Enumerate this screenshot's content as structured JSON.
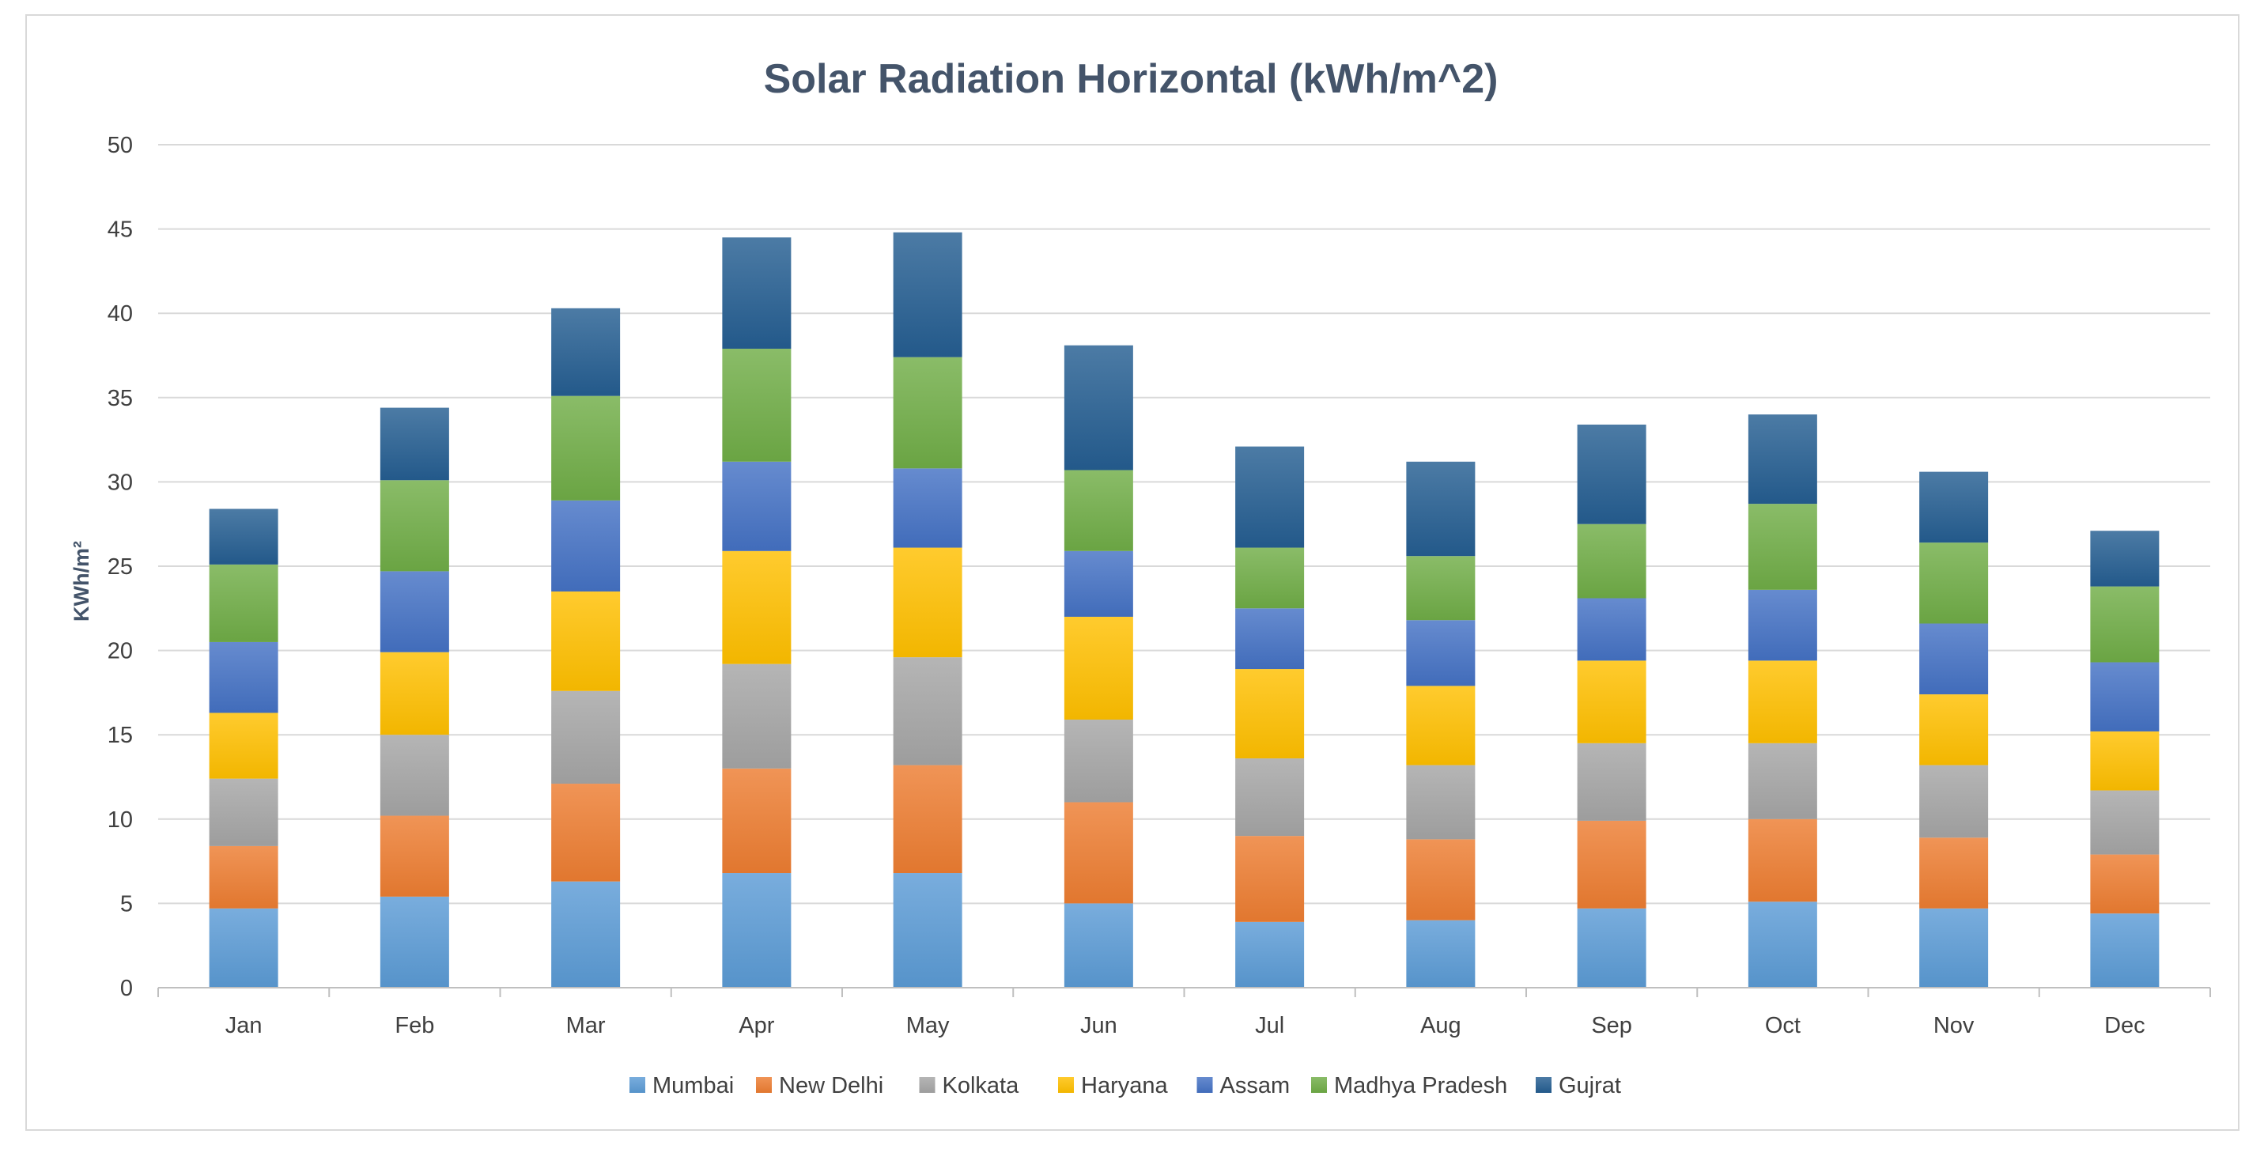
{
  "chart_data": {
    "type": "bar",
    "stacked": true,
    "title": "Solar Radiation Horizontal (kWh/m^2)",
    "xlabel": "",
    "ylabel": "KWh/m²",
    "ylim": [
      0,
      50
    ],
    "yticks": [
      0,
      5,
      10,
      15,
      20,
      25,
      30,
      35,
      40,
      45,
      50
    ],
    "grid": true,
    "legend_position": "bottom",
    "categories": [
      "Jan",
      "Feb",
      "Mar",
      "Apr",
      "May",
      "Jun",
      "Jul",
      "Aug",
      "Sep",
      "Oct",
      "Nov",
      "Dec"
    ],
    "series": [
      {
        "name": "Mumbai",
        "color": "#5b9bd5",
        "values": [
          4.7,
          5.4,
          6.3,
          6.8,
          6.8,
          5.0,
          3.9,
          4.0,
          4.7,
          5.1,
          4.7,
          4.4
        ]
      },
      {
        "name": "New Delhi",
        "color": "#ed7d31",
        "values": [
          3.7,
          4.8,
          5.8,
          6.2,
          6.4,
          6.0,
          5.1,
          4.8,
          5.2,
          4.9,
          4.2,
          3.5
        ]
      },
      {
        "name": "Kolkata",
        "color": "#a5a5a5",
        "values": [
          4.0,
          4.8,
          5.5,
          6.2,
          6.4,
          4.9,
          4.6,
          4.4,
          4.6,
          4.5,
          4.3,
          3.8
        ]
      },
      {
        "name": "Haryana",
        "color": "#ffc000",
        "values": [
          3.9,
          4.9,
          5.9,
          6.7,
          6.5,
          6.1,
          5.3,
          4.7,
          4.9,
          4.9,
          4.2,
          3.5
        ]
      },
      {
        "name": "Assam",
        "color": "#4472c4",
        "values": [
          4.2,
          4.8,
          5.4,
          5.3,
          4.7,
          3.9,
          3.6,
          3.9,
          3.7,
          4.2,
          4.2,
          4.1
        ]
      },
      {
        "name": "Madhya Pradesh",
        "color": "#70ad47",
        "values": [
          4.6,
          5.4,
          6.2,
          6.7,
          6.6,
          4.8,
          3.6,
          3.8,
          4.4,
          5.1,
          4.8,
          4.5
        ]
      },
      {
        "name": "Gujrat",
        "color": "#255e91",
        "values": [
          3.3,
          4.3,
          5.2,
          6.6,
          7.4,
          7.4,
          6.0,
          5.6,
          5.9,
          5.3,
          4.2,
          3.3
        ]
      }
    ]
  }
}
